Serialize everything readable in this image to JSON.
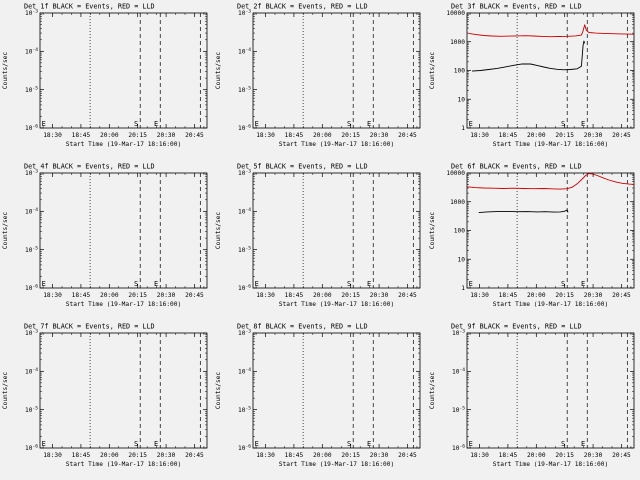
{
  "page": {
    "bg": "#f1f1f1",
    "fg": "#000000",
    "red": "#cc0000"
  },
  "shared": {
    "xlabel": "Start Time (19-Mar-17 18:16:00)",
    "ylabel": "Counts/sec",
    "xticks": [
      {
        "label": "18:30",
        "frac": 0.075
      },
      {
        "label": "18:45",
        "frac": 0.245
      },
      {
        "label": "20:00",
        "frac": 0.415
      },
      {
        "label": "20:15",
        "frac": 0.585
      },
      {
        "label": "20:30",
        "frac": 0.755
      },
      {
        "label": "20:45",
        "frac": 0.925
      }
    ],
    "ytick_sets": {
      "empty": [
        {
          "label": "10",
          "sup": "-3",
          "frac": 0
        },
        {
          "label": "10",
          "sup": "-4",
          "frac": 0.3333
        },
        {
          "label": "10",
          "sup": "-5",
          "frac": 0.6667
        },
        {
          "label": "10",
          "sup": "-6",
          "frac": 1
        }
      ],
      "data": [
        {
          "label": "10000",
          "sup": "",
          "frac": 0
        },
        {
          "label": "1000",
          "sup": "",
          "frac": 0.25
        },
        {
          "label": "100",
          "sup": "",
          "frac": 0.5
        },
        {
          "label": "10",
          "sup": "",
          "frac": 0.75
        },
        {
          "label": "1",
          "sup": "",
          "frac": 1
        }
      ]
    },
    "vlines": [
      {
        "frac": 0.3,
        "style": "dotted"
      },
      {
        "frac": 0.6,
        "style": "dashed"
      },
      {
        "frac": 0.72,
        "style": "dashed"
      },
      {
        "frac": 0.96,
        "style": "dashed"
      }
    ],
    "flags": [
      {
        "label": "E",
        "frac": 0.004,
        "anchor": "start"
      },
      {
        "label": "S",
        "frac": 0.6,
        "anchor": "end"
      },
      {
        "label": "E",
        "frac": 0.72,
        "anchor": "end"
      }
    ]
  },
  "chart_data": [
    {
      "name": "det-1f",
      "type": "line",
      "title": "Det 1f BLACK = Events, RED = LLD",
      "ytick_set": "empty",
      "yrange": [
        1e-06,
        0.001
      ],
      "series": []
    },
    {
      "name": "det-2f",
      "type": "line",
      "title": "Det 2f BLACK = Events, RED = LLD",
      "ytick_set": "empty",
      "yrange": [
        1e-06,
        0.001
      ],
      "series": []
    },
    {
      "name": "det-3f",
      "type": "line",
      "title": "Det 3f BLACK = Events, RED = LLD",
      "ytick_set": "data",
      "yrange": [
        1,
        10000
      ],
      "series": [
        {
          "name": "Events",
          "color": "#000000",
          "points": [
            [
              0.03,
              95
            ],
            [
              0.08,
              100
            ],
            [
              0.13,
              108
            ],
            [
              0.18,
              118
            ],
            [
              0.23,
              133
            ],
            [
              0.28,
              152
            ],
            [
              0.33,
              170
            ],
            [
              0.38,
              168
            ],
            [
              0.42,
              150
            ],
            [
              0.46,
              132
            ],
            [
              0.5,
              118
            ],
            [
              0.54,
              110
            ],
            [
              0.58,
              106
            ],
            [
              0.62,
              108
            ],
            [
              0.66,
              115
            ],
            [
              0.685,
              140
            ],
            [
              0.695,
              750
            ],
            [
              0.7,
              1050
            ],
            [
              0.705,
              880
            ]
          ]
        },
        {
          "name": "LLD",
          "color": "#cc0000",
          "points": [
            [
              0.01,
              1950
            ],
            [
              0.05,
              1800
            ],
            [
              0.1,
              1650
            ],
            [
              0.15,
              1580
            ],
            [
              0.2,
              1550
            ],
            [
              0.25,
              1570
            ],
            [
              0.3,
              1600
            ],
            [
              0.35,
              1620
            ],
            [
              0.4,
              1580
            ],
            [
              0.45,
              1530
            ],
            [
              0.5,
              1500
            ],
            [
              0.55,
              1520
            ],
            [
              0.6,
              1550
            ],
            [
              0.65,
              1600
            ],
            [
              0.685,
              1700
            ],
            [
              0.695,
              2400
            ],
            [
              0.705,
              3900
            ],
            [
              0.715,
              2500
            ],
            [
              0.73,
              2100
            ],
            [
              0.77,
              2000
            ],
            [
              0.82,
              1950
            ],
            [
              0.87,
              1900
            ],
            [
              0.92,
              1870
            ],
            [
              0.97,
              1840
            ],
            [
              1.0,
              1820
            ]
          ]
        }
      ]
    },
    {
      "name": "det-4f",
      "type": "line",
      "title": "Det 4f BLACK = Events, RED = LLD",
      "ytick_set": "empty",
      "yrange": [
        1e-06,
        0.001
      ],
      "series": []
    },
    {
      "name": "det-5f",
      "type": "line",
      "title": "Det 5f BLACK = Events, RED = LLD",
      "ytick_set": "empty",
      "yrange": [
        1e-06,
        0.001
      ],
      "series": []
    },
    {
      "name": "det-6f",
      "type": "line",
      "title": "Det 6f BLACK = Events, RED = LLD",
      "ytick_set": "data",
      "yrange": [
        1,
        10000
      ],
      "series": [
        {
          "name": "Events",
          "color": "#000000",
          "points": [
            [
              0.07,
              420
            ],
            [
              0.12,
              445
            ],
            [
              0.18,
              455
            ],
            [
              0.24,
              460
            ],
            [
              0.3,
              450
            ],
            [
              0.36,
              455
            ],
            [
              0.42,
              445
            ],
            [
              0.47,
              450
            ],
            [
              0.52,
              435
            ],
            [
              0.56,
              445
            ],
            [
              0.585,
              470
            ],
            [
              0.6,
              520
            ],
            [
              0.605,
              430
            ]
          ]
        },
        {
          "name": "LLD",
          "color": "#cc0000",
          "points": [
            [
              0.0,
              3300
            ],
            [
              0.05,
              3100
            ],
            [
              0.1,
              3000
            ],
            [
              0.16,
              2950
            ],
            [
              0.22,
              2900
            ],
            [
              0.28,
              2950
            ],
            [
              0.34,
              2900
            ],
            [
              0.4,
              2850
            ],
            [
              0.46,
              2900
            ],
            [
              0.52,
              2800
            ],
            [
              0.56,
              2750
            ],
            [
              0.6,
              2850
            ],
            [
              0.63,
              3200
            ],
            [
              0.66,
              4200
            ],
            [
              0.69,
              6200
            ],
            [
              0.71,
              8200
            ],
            [
              0.73,
              9600
            ],
            [
              0.75,
              9300
            ],
            [
              0.78,
              8200
            ],
            [
              0.81,
              6900
            ],
            [
              0.85,
              5700
            ],
            [
              0.89,
              4900
            ],
            [
              0.93,
              4400
            ],
            [
              0.97,
              4100
            ],
            [
              1.0,
              4000
            ]
          ]
        }
      ]
    },
    {
      "name": "det-7f",
      "type": "line",
      "title": "Det 7f BLACK = Events, RED = LLD",
      "ytick_set": "empty",
      "yrange": [
        1e-06,
        0.001
      ],
      "series": []
    },
    {
      "name": "det-8f",
      "type": "line",
      "title": "Det 8f BLACK = Events, RED = LLD",
      "ytick_set": "empty",
      "yrange": [
        1e-06,
        0.001
      ],
      "series": []
    },
    {
      "name": "det-9f",
      "type": "line",
      "title": "Det 9f BLACK = Events, RED = LLD",
      "ytick_set": "empty",
      "yrange": [
        1e-06,
        0.001
      ],
      "series": []
    }
  ]
}
